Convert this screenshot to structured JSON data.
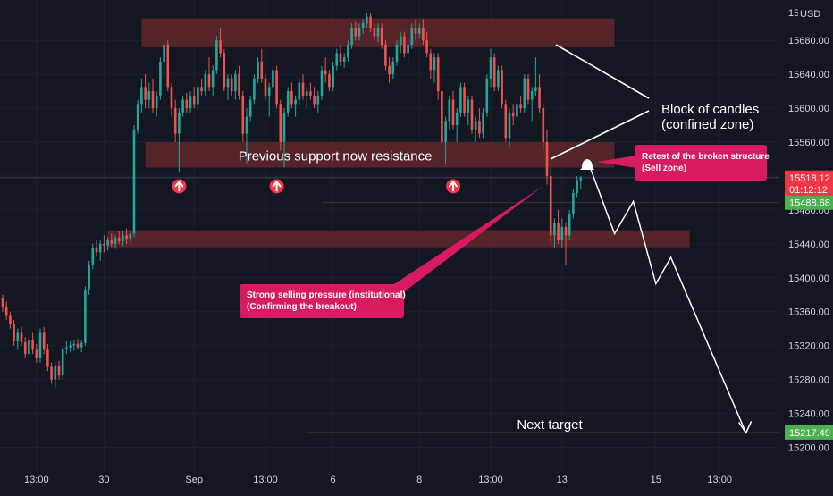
{
  "chart_data": {
    "type": "candlestick",
    "currency": "USD",
    "ylim": [
      15190,
      15715
    ],
    "y_ticks": [
      15200,
      15240,
      15280,
      15320,
      15360,
      15400,
      15440,
      15480,
      15520,
      15560,
      15600,
      15640,
      15680
    ],
    "y_tick_labels": [
      "15200.00",
      "15240.00",
      "15280.00",
      "15320.00",
      "15360.00",
      "15400.00",
      "15440.00",
      "15480.00",
      "15520.00",
      "15560.00",
      "15600.00",
      "15640.00",
      "15680.00"
    ],
    "top_tick_label": "15",
    "x_ticks": [
      {
        "label": "13:00",
        "index": 9
      },
      {
        "label": "30",
        "index": 27
      },
      {
        "label": "Sep",
        "index": 51
      },
      {
        "label": "13:00",
        "index": 70
      },
      {
        "label": "6",
        "index": 88
      },
      {
        "label": "8",
        "index": 111
      },
      {
        "label": "13:00",
        "index": 130
      },
      {
        "label": "13",
        "index": 149
      },
      {
        "label": "15",
        "index": 174
      },
      {
        "label": "13:00",
        "index": 191
      }
    ],
    "price_labels": [
      {
        "value": 15518.12,
        "text": "15518.12",
        "sub": "01:12:12",
        "color": "#f23645"
      },
      {
        "value": 15488.68,
        "text": "15488.68",
        "color": "#4caf50"
      },
      {
        "value": 15217.49,
        "text": "15217.49",
        "color": "#4caf50"
      }
    ],
    "zones": [
      {
        "from": 15672,
        "to": 15706,
        "i0": 37,
        "i1": 163
      },
      {
        "from": 15530,
        "to": 15560,
        "i0": 38,
        "i1": 163,
        "label": "Previous support now resistance"
      },
      {
        "from": 15436,
        "to": 15456,
        "i0": 28,
        "i1": 183
      }
    ],
    "up_arrows": [
      {
        "index": 47,
        "price": 15508
      },
      {
        "index": 73,
        "price": 15508
      },
      {
        "index": 120,
        "price": 15508
      }
    ],
    "annotations": {
      "block": {
        "line1": "Block of candles",
        "line2": "(confined zone)"
      },
      "retest": {
        "line1": "Retest of the broken structure",
        "line2": "(Sell zone)"
      },
      "selling": {
        "line1": "Strong selling pressure (institutional)",
        "line2": "(Confirming the breakout)"
      },
      "target": "Next target"
    },
    "projection": [
      {
        "index": 156,
        "price": 15536
      },
      {
        "index": 163,
        "price": 15452
      },
      {
        "index": 168,
        "price": 15490
      },
      {
        "index": 174,
        "price": 15393
      },
      {
        "index": 178,
        "price": 15424
      },
      {
        "index": 198,
        "price": 15217
      }
    ],
    "ohlc": [
      [
        15376,
        15380,
        15360,
        15365
      ],
      [
        15365,
        15372,
        15350,
        15355
      ],
      [
        15355,
        15360,
        15340,
        15345
      ],
      [
        15345,
        15350,
        15320,
        15325
      ],
      [
        15325,
        15340,
        15315,
        15335
      ],
      [
        15335,
        15342,
        15320,
        15324
      ],
      [
        15324,
        15330,
        15305,
        15310
      ],
      [
        15310,
        15330,
        15300,
        15326
      ],
      [
        15326,
        15335,
        15310,
        15315
      ],
      [
        15315,
        15322,
        15300,
        15305
      ],
      [
        15305,
        15340,
        15300,
        15335
      ],
      [
        15335,
        15342,
        15310,
        15315
      ],
      [
        15315,
        15322,
        15290,
        15295
      ],
      [
        15295,
        15300,
        15275,
        15280
      ],
      [
        15280,
        15300,
        15270,
        15296
      ],
      [
        15296,
        15302,
        15280,
        15285
      ],
      [
        15285,
        15320,
        15280,
        15316
      ],
      [
        15316,
        15325,
        15310,
        15318
      ],
      [
        15318,
        15325,
        15312,
        15320
      ],
      [
        15320,
        15326,
        15314,
        15322
      ],
      [
        15322,
        15328,
        15315,
        15318
      ],
      [
        15318,
        15326,
        15312,
        15323
      ],
      [
        15323,
        15390,
        15320,
        15385
      ],
      [
        15385,
        15420,
        15380,
        15415
      ],
      [
        15415,
        15440,
        15410,
        15435
      ],
      [
        15435,
        15445,
        15425,
        15430
      ],
      [
        15430,
        15445,
        15420,
        15440
      ],
      [
        15440,
        15450,
        15430,
        15438
      ],
      [
        15438,
        15448,
        15432,
        15444
      ],
      [
        15444,
        15452,
        15436,
        15440
      ],
      [
        15440,
        15450,
        15434,
        15447
      ],
      [
        15447,
        15455,
        15440,
        15443
      ],
      [
        15443,
        15455,
        15438,
        15450
      ],
      [
        15450,
        15458,
        15440,
        15446
      ],
      [
        15446,
        15456,
        15440,
        15452
      ],
      [
        15452,
        15580,
        15448,
        15575
      ],
      [
        15575,
        15610,
        15570,
        15605
      ],
      [
        15605,
        15635,
        15595,
        15625
      ],
      [
        15625,
        15640,
        15600,
        15610
      ],
      [
        15610,
        15630,
        15600,
        15620
      ],
      [
        15620,
        15635,
        15595,
        15600
      ],
      [
        15600,
        15620,
        15590,
        15615
      ],
      [
        15615,
        15660,
        15610,
        15655
      ],
      [
        15655,
        15680,
        15640,
        15675
      ],
      [
        15675,
        15680,
        15620,
        15625
      ],
      [
        15625,
        15630,
        15590,
        15600
      ],
      [
        15600,
        15610,
        15560,
        15570
      ],
      [
        15570,
        15600,
        15525,
        15595
      ],
      [
        15595,
        15615,
        15590,
        15610
      ],
      [
        15610,
        15618,
        15595,
        15600
      ],
      [
        15600,
        15620,
        15595,
        15615
      ],
      [
        15615,
        15625,
        15600,
        15605
      ],
      [
        15605,
        15630,
        15600,
        15625
      ],
      [
        15625,
        15635,
        15615,
        15620
      ],
      [
        15620,
        15645,
        15615,
        15640
      ],
      [
        15640,
        15660,
        15620,
        15625
      ],
      [
        15625,
        15650,
        15615,
        15645
      ],
      [
        15645,
        15685,
        15640,
        15680
      ],
      [
        15680,
        15695,
        15660,
        15665
      ],
      [
        15665,
        15670,
        15620,
        15625
      ],
      [
        15625,
        15640,
        15610,
        15635
      ],
      [
        15635,
        15640,
        15615,
        15620
      ],
      [
        15620,
        15645,
        15610,
        15640
      ],
      [
        15640,
        15650,
        15610,
        15615
      ],
      [
        15615,
        15620,
        15560,
        15570
      ],
      [
        15570,
        15600,
        15535,
        15590
      ],
      [
        15590,
        15615,
        15585,
        15610
      ],
      [
        15610,
        15640,
        15605,
        15635
      ],
      [
        15635,
        15660,
        15630,
        15655
      ],
      [
        15655,
        15670,
        15630,
        15635
      ],
      [
        15635,
        15640,
        15610,
        15615
      ],
      [
        15615,
        15630,
        15590,
        15625
      ],
      [
        15625,
        15650,
        15620,
        15645
      ],
      [
        15645,
        15650,
        15600,
        15605
      ],
      [
        15605,
        15610,
        15550,
        15560
      ],
      [
        15560,
        15600,
        15530,
        15595
      ],
      [
        15595,
        15625,
        15590,
        15620
      ],
      [
        15620,
        15630,
        15600,
        15605
      ],
      [
        15605,
        15615,
        15590,
        15610
      ],
      [
        15610,
        15635,
        15605,
        15630
      ],
      [
        15630,
        15640,
        15610,
        15615
      ],
      [
        15615,
        15625,
        15600,
        15620
      ],
      [
        15620,
        15630,
        15610,
        15615
      ],
      [
        15615,
        15625,
        15600,
        15605
      ],
      [
        15605,
        15620,
        15595,
        15615
      ],
      [
        15615,
        15650,
        15610,
        15645
      ],
      [
        15645,
        15660,
        15630,
        15640
      ],
      [
        15640,
        15645,
        15620,
        15625
      ],
      [
        15625,
        15655,
        15620,
        15650
      ],
      [
        15650,
        15670,
        15645,
        15665
      ],
      [
        15665,
        15675,
        15650,
        15655
      ],
      [
        15655,
        15665,
        15648,
        15660
      ],
      [
        15660,
        15680,
        15655,
        15675
      ],
      [
        15675,
        15700,
        15670,
        15695
      ],
      [
        15695,
        15702,
        15680,
        15685
      ],
      [
        15685,
        15700,
        15680,
        15695
      ],
      [
        15695,
        15705,
        15688,
        15700
      ],
      [
        15700,
        15712,
        15695,
        15708
      ],
      [
        15708,
        15712,
        15690,
        15695
      ],
      [
        15695,
        15700,
        15680,
        15685
      ],
      [
        15685,
        15700,
        15678,
        15695
      ],
      [
        15695,
        15700,
        15670,
        15675
      ],
      [
        15675,
        15680,
        15645,
        15650
      ],
      [
        15650,
        15660,
        15630,
        15640
      ],
      [
        15640,
        15660,
        15635,
        15655
      ],
      [
        15655,
        15680,
        15650,
        15675
      ],
      [
        15675,
        15690,
        15665,
        15685
      ],
      [
        15685,
        15690,
        15660,
        15665
      ],
      [
        15665,
        15680,
        15655,
        15675
      ],
      [
        15675,
        15700,
        15670,
        15695
      ],
      [
        15695,
        15705,
        15680,
        15688
      ],
      [
        15688,
        15700,
        15682,
        15695
      ],
      [
        15695,
        15705,
        15675,
        15680
      ],
      [
        15680,
        15690,
        15660,
        15665
      ],
      [
        15665,
        15670,
        15635,
        15645
      ],
      [
        15645,
        15665,
        15630,
        15660
      ],
      [
        15660,
        15665,
        15610,
        15620
      ],
      [
        15620,
        15640,
        15550,
        15560
      ],
      [
        15560,
        15590,
        15535,
        15585
      ],
      [
        15585,
        15615,
        15575,
        15610
      ],
      [
        15610,
        15620,
        15575,
        15580
      ],
      [
        15580,
        15600,
        15560,
        15595
      ],
      [
        15595,
        15630,
        15590,
        15625
      ],
      [
        15625,
        15630,
        15590,
        15595
      ],
      [
        15595,
        15615,
        15580,
        15610
      ],
      [
        15610,
        15615,
        15570,
        15575
      ],
      [
        15575,
        15590,
        15560,
        15585
      ],
      [
        15585,
        15600,
        15565,
        15570
      ],
      [
        15570,
        15600,
        15565,
        15595
      ],
      [
        15595,
        15640,
        15590,
        15635
      ],
      [
        15635,
        15670,
        15625,
        15660
      ],
      [
        15660,
        15665,
        15620,
        15625
      ],
      [
        15625,
        15650,
        15620,
        15645
      ],
      [
        15645,
        15650,
        15600,
        15605
      ],
      [
        15605,
        15610,
        15560,
        15565
      ],
      [
        15565,
        15600,
        15555,
        15595
      ],
      [
        15595,
        15605,
        15580,
        15590
      ],
      [
        15590,
        15610,
        15585,
        15605
      ],
      [
        15605,
        15615,
        15595,
        15600
      ],
      [
        15600,
        15640,
        15595,
        15635
      ],
      [
        15635,
        15640,
        15605,
        15610
      ],
      [
        15610,
        15625,
        15585,
        15620
      ],
      [
        15620,
        15660,
        15615,
        15625
      ],
      [
        15625,
        15640,
        15595,
        15600
      ],
      [
        15600,
        15605,
        15550,
        15560
      ],
      [
        15560,
        15575,
        15510,
        15520
      ],
      [
        15520,
        15530,
        15440,
        15450
      ],
      [
        15450,
        15470,
        15435,
        15465
      ],
      [
        15465,
        15480,
        15440,
        15445
      ],
      [
        15445,
        15470,
        15435,
        15460
      ],
      [
        15460,
        15465,
        15415,
        15450
      ],
      [
        15450,
        15480,
        15445,
        15475
      ],
      [
        15475,
        15505,
        15470,
        15500
      ],
      [
        15500,
        15520,
        15495,
        15515
      ],
      [
        15515,
        15520,
        15505,
        15518
      ]
    ]
  }
}
